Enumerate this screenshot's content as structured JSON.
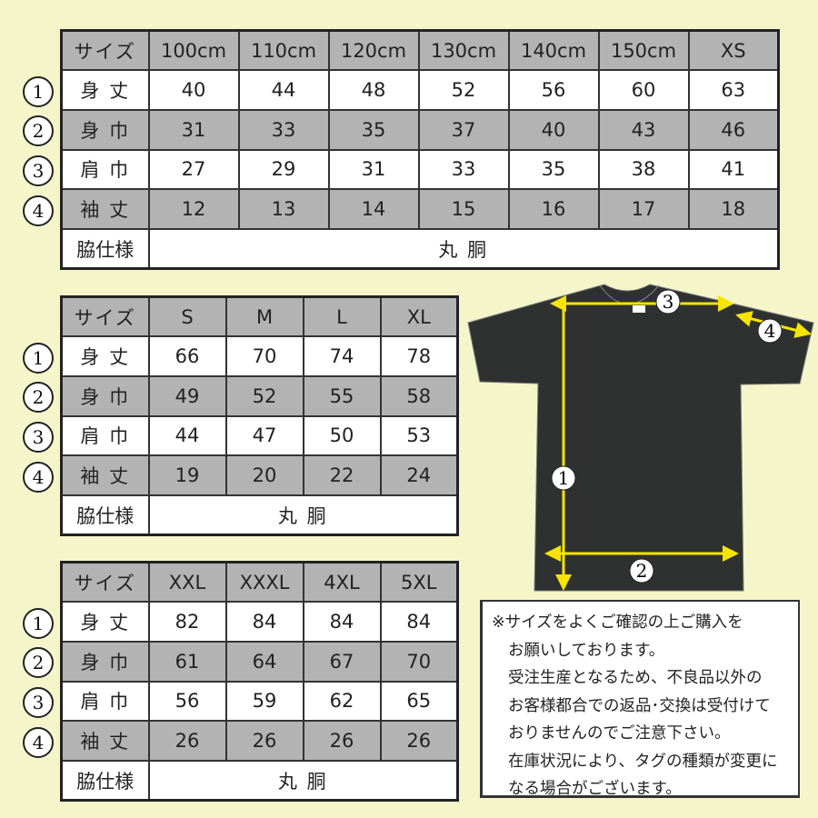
{
  "row_markers": [
    "①",
    "②",
    "③",
    "④"
  ],
  "row_labels": [
    "サイズ",
    "身 丈",
    "身 巾",
    "肩 巾",
    "袖 丈",
    "脇仕様"
  ],
  "tables": [
    {
      "sizes": [
        "100cm",
        "110cm",
        "120cm",
        "130cm",
        "140cm",
        "150cm",
        "XS"
      ],
      "rows": [
        [
          "40",
          "44",
          "48",
          "52",
          "56",
          "60",
          "63"
        ],
        [
          "31",
          "33",
          "35",
          "37",
          "40",
          "43",
          "46"
        ],
        [
          "27",
          "29",
          "31",
          "33",
          "35",
          "38",
          "41"
        ],
        [
          "12",
          "13",
          "14",
          "15",
          "16",
          "17",
          "18"
        ]
      ],
      "side_spec": "丸 胴"
    },
    {
      "sizes": [
        "S",
        "M",
        "L",
        "XL"
      ],
      "rows": [
        [
          "66",
          "70",
          "74",
          "78"
        ],
        [
          "49",
          "52",
          "55",
          "58"
        ],
        [
          "44",
          "47",
          "50",
          "53"
        ],
        [
          "19",
          "20",
          "22",
          "24"
        ]
      ],
      "side_spec": "丸 胴"
    },
    {
      "sizes": [
        "XXL",
        "XXXL",
        "4XL",
        "5XL"
      ],
      "rows": [
        [
          "82",
          "84",
          "84",
          "84"
        ],
        [
          "61",
          "64",
          "67",
          "70"
        ],
        [
          "56",
          "59",
          "62",
          "65"
        ],
        [
          "26",
          "26",
          "26",
          "26"
        ]
      ],
      "side_spec": "丸 胴"
    }
  ],
  "diagram": {
    "markers": [
      "1",
      "2",
      "3",
      "4"
    ],
    "shirt_color": "#2f3130",
    "arrow_color": "#f5e400"
  },
  "note": {
    "lines": [
      "※サイズをよくご確認の上ご購入を",
      "お願いしております。",
      "受注生産となるため、不良品以外の",
      "お客様都合での返品･交換は受付けて",
      "おりませんのでご注意下さい。",
      "在庫状況により、タグの種類が変更に",
      "なる場合がございます。"
    ]
  },
  "colors": {
    "background": "#f4f6ca",
    "header_gray": "#b3b3b3"
  }
}
